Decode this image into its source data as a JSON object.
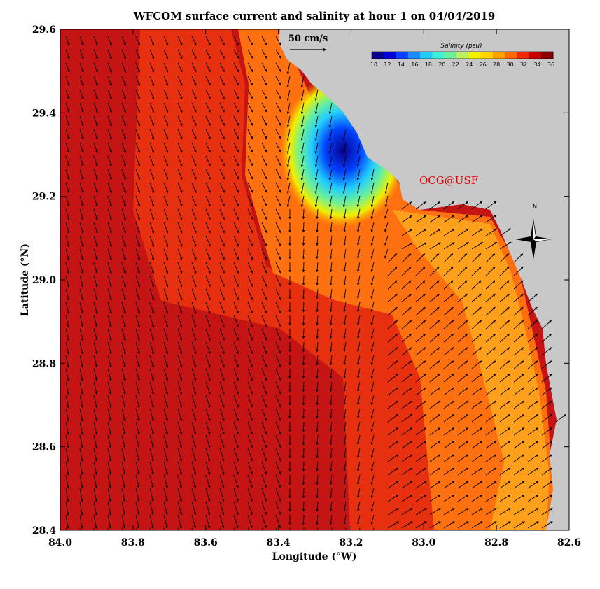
{
  "title": "WFCOM surface current and salinity at hour 1 on 04/04/2019",
  "x_axis": {
    "label": "Longitude (°W)",
    "ticks": [
      "84.0",
      "83.8",
      "83.6",
      "83.4",
      "83.2",
      "83.0",
      "82.8",
      "82.6"
    ]
  },
  "y_axis": {
    "label": "Latitude (°N)",
    "ticks": [
      "29.6",
      "29.4",
      "29.2",
      "29.0",
      "28.8",
      "28.6",
      "28.4"
    ]
  },
  "scale_arrow": {
    "label": "50 cm/s"
  },
  "colorbar": {
    "title": "Salinity (psu)",
    "ticks": [
      "10",
      "12",
      "14",
      "16",
      "18",
      "20",
      "22",
      "24",
      "26",
      "28",
      "30",
      "32",
      "34",
      "36"
    ],
    "colors": [
      "#0a008c",
      "#0000d8",
      "#0a40ff",
      "#1a8cff",
      "#22ccff",
      "#3ef0d8",
      "#6af09a",
      "#b8f060",
      "#f0f000",
      "#ffd400",
      "#ffa000",
      "#ff6a00",
      "#f02800",
      "#c80000",
      "#8c0000"
    ]
  },
  "credit": "OCG@USF",
  "compass": {
    "label": "N"
  },
  "colors": {
    "land": "#c8c8c8",
    "offshore": "#c41414",
    "shelf": "#e63010",
    "coastal": "#ff7010",
    "credit": "#e00000"
  }
}
